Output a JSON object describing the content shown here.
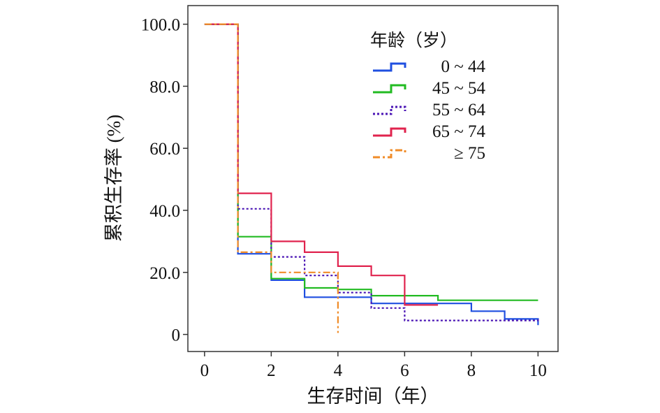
{
  "chart_data": {
    "type": "line",
    "step": true,
    "xlabel": "生存时间（年）",
    "ylabel": "累积生存率 (%)",
    "xlim": [
      -0.5,
      10.6
    ],
    "ylim": [
      -5.5,
      106
    ],
    "xticks": [
      0,
      2,
      4,
      6,
      8,
      10
    ],
    "yticks": [
      0,
      20,
      40,
      60,
      80,
      100
    ],
    "xtick_labels": [
      "0",
      "2",
      "4",
      "6",
      "8",
      "10"
    ],
    "ytick_labels": [
      "0",
      "20.0",
      "40.0",
      "60.0",
      "80.0",
      "100.0"
    ],
    "grid": false,
    "legend": {
      "title": "年龄（岁）",
      "position": "top-right"
    },
    "series": [
      {
        "name": "0 ~ 44",
        "color": "#1f4fe0",
        "dash": "solid",
        "x": [
          0,
          1,
          1,
          2,
          2,
          3,
          3,
          5,
          5,
          8,
          8,
          9,
          9,
          10,
          10
        ],
        "y": [
          100,
          100,
          26,
          26,
          17.5,
          17.5,
          12,
          12,
          10,
          10,
          7.5,
          7.5,
          5,
          5,
          3
        ]
      },
      {
        "name": "45 ~ 54",
        "color": "#22bb22",
        "dash": "solid",
        "x": [
          0,
          1,
          1,
          2,
          2,
          3,
          3,
          4,
          4,
          5,
          5,
          7,
          7,
          10
        ],
        "y": [
          100,
          100,
          31.5,
          31.5,
          18,
          18,
          15,
          15,
          14.5,
          14.5,
          12.5,
          12.5,
          11,
          11
        ]
      },
      {
        "name": "55 ~ 64",
        "color": "#4b16b5",
        "dash": "dotted",
        "x": [
          0,
          1,
          1,
          2,
          2,
          3,
          3,
          4,
          4,
          5,
          5,
          6,
          6,
          10,
          10
        ],
        "y": [
          100,
          100,
          40.5,
          40.5,
          25,
          25,
          19,
          19,
          13.5,
          13.5,
          8.5,
          8.5,
          4.5,
          4.5,
          5
        ]
      },
      {
        "name": "65 ~ 74",
        "color": "#e0234e",
        "dash": "solid",
        "x": [
          0,
          1,
          1,
          2,
          2,
          3,
          3,
          4,
          4,
          5,
          5,
          6,
          6,
          7
        ],
        "y": [
          100,
          100,
          45.5,
          45.5,
          30,
          30,
          26.5,
          26.5,
          22,
          22,
          19,
          19,
          9.5,
          9.5
        ]
      },
      {
        "name": "≥ 75",
        "color": "#f08c28",
        "dash": "dashdot",
        "x": [
          0,
          1,
          1,
          2,
          2,
          4,
          4
        ],
        "y": [
          100,
          100,
          26.5,
          26.5,
          20,
          20,
          0.5
        ]
      }
    ]
  }
}
